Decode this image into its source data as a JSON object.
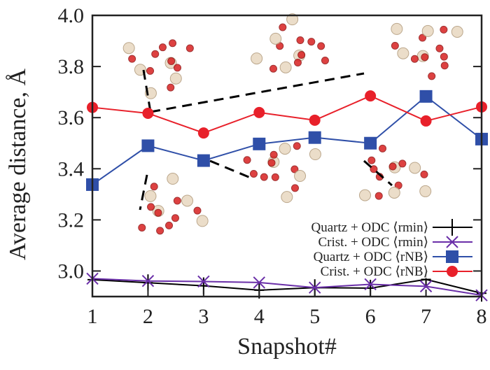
{
  "chart_data": {
    "type": "line",
    "title": "",
    "xlabel": "Snapshot#",
    "ylabel": "Average distance, Å",
    "x": [
      1,
      2,
      3,
      4,
      5,
      6,
      7,
      8
    ],
    "xlim": [
      1,
      8
    ],
    "ylim": [
      2.9,
      4.0
    ],
    "xticks": [
      "1",
      "2",
      "3",
      "4",
      "5",
      "6",
      "7",
      "8"
    ],
    "yticks": [
      "3.0",
      "3.2",
      "3.4",
      "3.6",
      "3.8",
      "4.0"
    ],
    "ytick_values": [
      3.0,
      3.2,
      3.4,
      3.6,
      3.8,
      4.0
    ],
    "grid": false,
    "legend_position": "bottom-right",
    "series": [
      {
        "name": "Quartz + ODC ⟨rmin⟩",
        "color": "#000000",
        "marker": "plus",
        "values": [
          2.966,
          2.954,
          2.942,
          2.925,
          2.935,
          2.933,
          2.967,
          2.913
        ]
      },
      {
        "name": "Crist. + ODC ⟨rmin⟩",
        "color": "#6a2fa8",
        "marker": "cross",
        "values": [
          2.97,
          2.961,
          2.959,
          2.955,
          2.935,
          2.948,
          2.94,
          2.905
        ]
      },
      {
        "name": "Quartz + ODC ⟨rNB⟩",
        "color": "#2f4fa8",
        "marker": "square",
        "values": [
          3.338,
          3.49,
          3.432,
          3.497,
          3.522,
          3.5,
          3.683,
          3.516
        ]
      },
      {
        "name": "Crist. + ODC ⟨rNB⟩",
        "color": "#e8202a",
        "marker": "circle",
        "values": [
          3.64,
          3.617,
          3.54,
          3.62,
          3.59,
          3.685,
          3.587,
          3.642
        ]
      }
    ]
  }
}
